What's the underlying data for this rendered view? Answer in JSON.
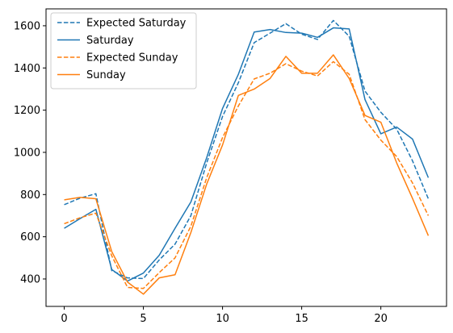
{
  "chart_data": {
    "type": "line",
    "title": "",
    "xlabel": "",
    "ylabel": "",
    "xlim": [
      -1.15,
      24.15
    ],
    "ylim": [
      270,
      1680
    ],
    "x_ticks": [
      0,
      5,
      10,
      15,
      20
    ],
    "y_ticks": [
      400,
      600,
      800,
      1000,
      1200,
      1400,
      1600
    ],
    "legend_position": "upper-left",
    "grid": false,
    "x": [
      0,
      1,
      2,
      3,
      4,
      5,
      6,
      7,
      8,
      9,
      10,
      11,
      12,
      13,
      14,
      15,
      16,
      17,
      18,
      19,
      20,
      21,
      22,
      23
    ],
    "series": [
      {
        "name": "Expected Saturday",
        "color": "#1f77b4",
        "dashed": true,
        "values": [
          752,
          783,
          804,
          440,
          405,
          402,
          490,
          565,
          700,
          950,
          1170,
          1330,
          1520,
          1565,
          1610,
          1560,
          1535,
          1625,
          1550,
          1290,
          1190,
          1110,
          960,
          780
        ]
      },
      {
        "name": "Saturday",
        "color": "#1f77b4",
        "dashed": false,
        "values": [
          640,
          686,
          730,
          445,
          390,
          428,
          512,
          640,
          765,
          975,
          1208,
          1370,
          1570,
          1582,
          1568,
          1565,
          1545,
          1590,
          1585,
          1250,
          1088,
          1120,
          1063,
          880
        ]
      },
      {
        "name": "Expected Sunday",
        "color": "#ff7f0e",
        "dashed": true,
        "values": [
          662,
          690,
          712,
          510,
          360,
          355,
          430,
          500,
          650,
          880,
          1070,
          1220,
          1348,
          1375,
          1420,
          1385,
          1362,
          1430,
          1370,
          1155,
          1058,
          980,
          855,
          700
        ]
      },
      {
        "name": "Sunday",
        "color": "#ff7f0e",
        "dashed": false,
        "values": [
          775,
          787,
          780,
          530,
          385,
          328,
          405,
          420,
          620,
          850,
          1035,
          1270,
          1300,
          1350,
          1455,
          1375,
          1375,
          1462,
          1350,
          1175,
          1143,
          950,
          782,
          605
        ]
      }
    ]
  }
}
